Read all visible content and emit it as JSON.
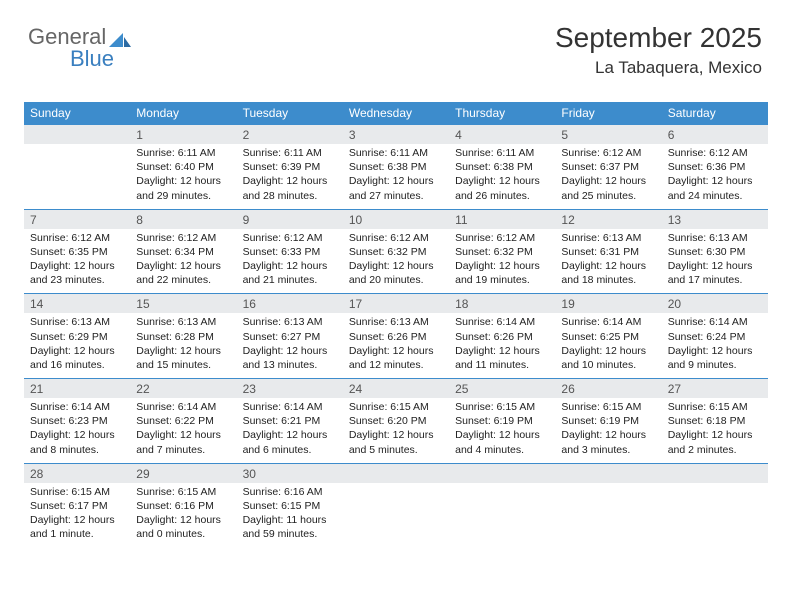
{
  "logo": {
    "text1": "General",
    "text2": "Blue"
  },
  "header": {
    "month_title": "September 2025",
    "location": "La Tabaquera, Mexico"
  },
  "colors": {
    "header_bg": "#3d8ccc",
    "header_text": "#ffffff",
    "daynum_bg": "#e8eaec",
    "daynum_text": "#555555",
    "week_border": "#3d8ccc",
    "body_text": "#222222"
  },
  "day_names": [
    "Sunday",
    "Monday",
    "Tuesday",
    "Wednesday",
    "Thursday",
    "Friday",
    "Saturday"
  ],
  "weeks": [
    [
      {
        "n": "",
        "lines": []
      },
      {
        "n": "1",
        "lines": [
          "Sunrise: 6:11 AM",
          "Sunset: 6:40 PM",
          "Daylight: 12 hours and 29 minutes."
        ]
      },
      {
        "n": "2",
        "lines": [
          "Sunrise: 6:11 AM",
          "Sunset: 6:39 PM",
          "Daylight: 12 hours and 28 minutes."
        ]
      },
      {
        "n": "3",
        "lines": [
          "Sunrise: 6:11 AM",
          "Sunset: 6:38 PM",
          "Daylight: 12 hours and 27 minutes."
        ]
      },
      {
        "n": "4",
        "lines": [
          "Sunrise: 6:11 AM",
          "Sunset: 6:38 PM",
          "Daylight: 12 hours and 26 minutes."
        ]
      },
      {
        "n": "5",
        "lines": [
          "Sunrise: 6:12 AM",
          "Sunset: 6:37 PM",
          "Daylight: 12 hours and 25 minutes."
        ]
      },
      {
        "n": "6",
        "lines": [
          "Sunrise: 6:12 AM",
          "Sunset: 6:36 PM",
          "Daylight: 12 hours and 24 minutes."
        ]
      }
    ],
    [
      {
        "n": "7",
        "lines": [
          "Sunrise: 6:12 AM",
          "Sunset: 6:35 PM",
          "Daylight: 12 hours and 23 minutes."
        ]
      },
      {
        "n": "8",
        "lines": [
          "Sunrise: 6:12 AM",
          "Sunset: 6:34 PM",
          "Daylight: 12 hours and 22 minutes."
        ]
      },
      {
        "n": "9",
        "lines": [
          "Sunrise: 6:12 AM",
          "Sunset: 6:33 PM",
          "Daylight: 12 hours and 21 minutes."
        ]
      },
      {
        "n": "10",
        "lines": [
          "Sunrise: 6:12 AM",
          "Sunset: 6:32 PM",
          "Daylight: 12 hours and 20 minutes."
        ]
      },
      {
        "n": "11",
        "lines": [
          "Sunrise: 6:12 AM",
          "Sunset: 6:32 PM",
          "Daylight: 12 hours and 19 minutes."
        ]
      },
      {
        "n": "12",
        "lines": [
          "Sunrise: 6:13 AM",
          "Sunset: 6:31 PM",
          "Daylight: 12 hours and 18 minutes."
        ]
      },
      {
        "n": "13",
        "lines": [
          "Sunrise: 6:13 AM",
          "Sunset: 6:30 PM",
          "Daylight: 12 hours and 17 minutes."
        ]
      }
    ],
    [
      {
        "n": "14",
        "lines": [
          "Sunrise: 6:13 AM",
          "Sunset: 6:29 PM",
          "Daylight: 12 hours and 16 minutes."
        ]
      },
      {
        "n": "15",
        "lines": [
          "Sunrise: 6:13 AM",
          "Sunset: 6:28 PM",
          "Daylight: 12 hours and 15 minutes."
        ]
      },
      {
        "n": "16",
        "lines": [
          "Sunrise: 6:13 AM",
          "Sunset: 6:27 PM",
          "Daylight: 12 hours and 13 minutes."
        ]
      },
      {
        "n": "17",
        "lines": [
          "Sunrise: 6:13 AM",
          "Sunset: 6:26 PM",
          "Daylight: 12 hours and 12 minutes."
        ]
      },
      {
        "n": "18",
        "lines": [
          "Sunrise: 6:14 AM",
          "Sunset: 6:26 PM",
          "Daylight: 12 hours and 11 minutes."
        ]
      },
      {
        "n": "19",
        "lines": [
          "Sunrise: 6:14 AM",
          "Sunset: 6:25 PM",
          "Daylight: 12 hours and 10 minutes."
        ]
      },
      {
        "n": "20",
        "lines": [
          "Sunrise: 6:14 AM",
          "Sunset: 6:24 PM",
          "Daylight: 12 hours and 9 minutes."
        ]
      }
    ],
    [
      {
        "n": "21",
        "lines": [
          "Sunrise: 6:14 AM",
          "Sunset: 6:23 PM",
          "Daylight: 12 hours and 8 minutes."
        ]
      },
      {
        "n": "22",
        "lines": [
          "Sunrise: 6:14 AM",
          "Sunset: 6:22 PM",
          "Daylight: 12 hours and 7 minutes."
        ]
      },
      {
        "n": "23",
        "lines": [
          "Sunrise: 6:14 AM",
          "Sunset: 6:21 PM",
          "Daylight: 12 hours and 6 minutes."
        ]
      },
      {
        "n": "24",
        "lines": [
          "Sunrise: 6:15 AM",
          "Sunset: 6:20 PM",
          "Daylight: 12 hours and 5 minutes."
        ]
      },
      {
        "n": "25",
        "lines": [
          "Sunrise: 6:15 AM",
          "Sunset: 6:19 PM",
          "Daylight: 12 hours and 4 minutes."
        ]
      },
      {
        "n": "26",
        "lines": [
          "Sunrise: 6:15 AM",
          "Sunset: 6:19 PM",
          "Daylight: 12 hours and 3 minutes."
        ]
      },
      {
        "n": "27",
        "lines": [
          "Sunrise: 6:15 AM",
          "Sunset: 6:18 PM",
          "Daylight: 12 hours and 2 minutes."
        ]
      }
    ],
    [
      {
        "n": "28",
        "lines": [
          "Sunrise: 6:15 AM",
          "Sunset: 6:17 PM",
          "Daylight: 12 hours and 1 minute."
        ]
      },
      {
        "n": "29",
        "lines": [
          "Sunrise: 6:15 AM",
          "Sunset: 6:16 PM",
          "Daylight: 12 hours and 0 minutes."
        ]
      },
      {
        "n": "30",
        "lines": [
          "Sunrise: 6:16 AM",
          "Sunset: 6:15 PM",
          "Daylight: 11 hours and 59 minutes."
        ]
      },
      {
        "n": "",
        "lines": []
      },
      {
        "n": "",
        "lines": []
      },
      {
        "n": "",
        "lines": []
      },
      {
        "n": "",
        "lines": []
      }
    ]
  ]
}
